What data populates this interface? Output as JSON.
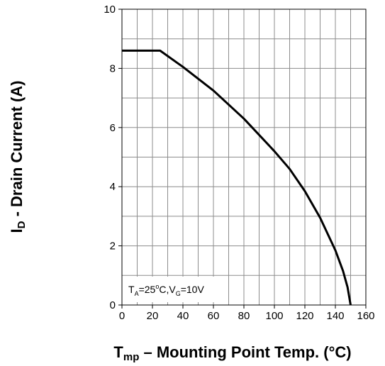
{
  "chart_data": {
    "type": "line",
    "xlabel": {
      "main": "T",
      "sub": "mp",
      "rest": " – Mounting Point Temp.  (°C)"
    },
    "ylabel": {
      "main": "I",
      "sub": "D",
      "rest": " - Drain Current (A)"
    },
    "xlim": [
      0,
      160
    ],
    "ylim": [
      0,
      10
    ],
    "xticks": [
      0,
      20,
      40,
      60,
      80,
      100,
      120,
      140,
      160
    ],
    "yticks": [
      0,
      2,
      4,
      6,
      8,
      10
    ],
    "x_grid_step": 10,
    "y_grid_step": 1,
    "grid": true,
    "series": [
      {
        "x": [
          0,
          25,
          40,
          60,
          80,
          100,
          110,
          120,
          130,
          140,
          145,
          148,
          150
        ],
        "y": [
          8.6,
          8.6,
          8.05,
          7.25,
          6.3,
          5.2,
          4.6,
          3.85,
          2.95,
          1.85,
          1.15,
          0.6,
          0
        ]
      }
    ],
    "annotation": {
      "parts": [
        "T",
        "A",
        "=25",
        "o",
        "C,V",
        "G",
        "=10V"
      ]
    }
  }
}
